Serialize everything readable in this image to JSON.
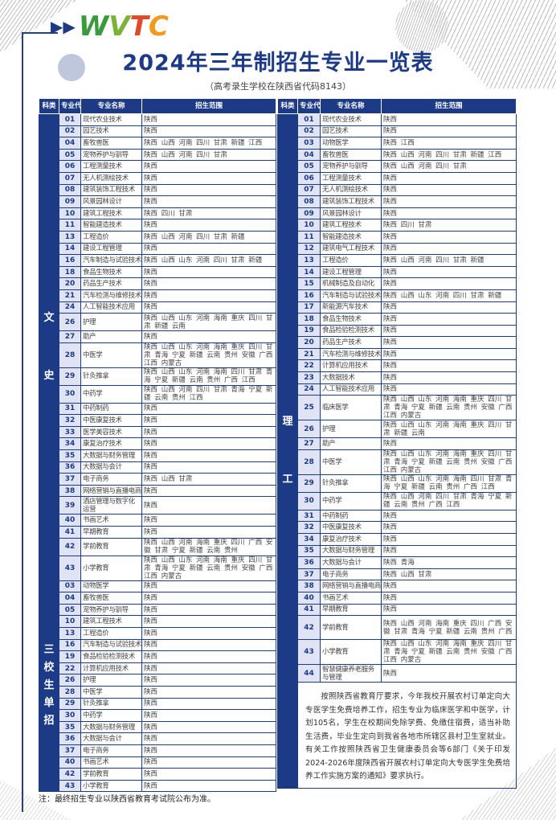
{
  "logo_text": "WVTC",
  "title": "2024年三年制招生专业一览表",
  "subtitle": "（高考录生学校在陕西省代码8143）",
  "colors": {
    "primary": "#1c3a85",
    "code_bg": "#dfe3f3"
  },
  "headers": {
    "category": "科类",
    "code": "专业代号",
    "name": "专业名称",
    "scope": "招生范围"
  },
  "left": {
    "sections": [
      {
        "category": "文史",
        "rows": [
          {
            "code": "01",
            "name": "现代农业技术",
            "scope": "陕西"
          },
          {
            "code": "02",
            "name": "园艺技术",
            "scope": "陕西"
          },
          {
            "code": "04",
            "name": "畜牧兽医",
            "scope": "陕西 山西 河南 四川 甘肃 新疆 江西"
          },
          {
            "code": "05",
            "name": "宠物养护与驯导",
            "scope": "陕西 山西 河南 四川 甘肃"
          },
          {
            "code": "06",
            "name": "工程测量技术",
            "scope": "陕西"
          },
          {
            "code": "07",
            "name": "无人机测绘技术",
            "scope": "陕西"
          },
          {
            "code": "08",
            "name": "建筑装饰工程技术",
            "scope": "陕西"
          },
          {
            "code": "09",
            "name": "风景园林设计",
            "scope": "陕西"
          },
          {
            "code": "10",
            "name": "建筑工程技术",
            "scope": "陕西 四川 甘肃"
          },
          {
            "code": "11",
            "name": "智能建造技术",
            "scope": "陕西"
          },
          {
            "code": "13",
            "name": "工程造价",
            "scope": "陕西 山西 河南 四川 甘肃 新疆"
          },
          {
            "code": "14",
            "name": "建设工程管理",
            "scope": "陕西"
          },
          {
            "code": "16",
            "name": "汽车制造与试验技术",
            "scope": "陕西 山西 山东 河南 四川 甘肃 新疆"
          },
          {
            "code": "18",
            "name": "食品生物技术",
            "scope": "陕西"
          },
          {
            "code": "20",
            "name": "药品生产技术",
            "scope": "陕西"
          },
          {
            "code": "21",
            "name": "汽车检测与维修技术",
            "scope": "陕西"
          },
          {
            "code": "24",
            "name": "人工智能技术应用",
            "scope": "陕西"
          },
          {
            "code": "26",
            "name": "护理",
            "scope": "陕西 山西 山东 河南 海南 重庆 四川 甘肃 新疆 云南"
          },
          {
            "code": "27",
            "name": "助产",
            "scope": "陕西"
          },
          {
            "code": "28",
            "name": "中医学",
            "scope": "陕西 山西 山东 河南 海南 重庆 四川 甘肃 青海 宁夏 新疆 云南 贵州 安徽 广西 江西 内蒙古"
          },
          {
            "code": "29",
            "name": "针灸推拿",
            "scope": "陕西 山西 山东 河南 海南 四川 甘肃 青海 宁夏 新疆 云南 贵州 广西 江西"
          },
          {
            "code": "30",
            "name": "中药学",
            "scope": "陕西 山西 河南 四川 甘肃 青海 宁夏 新疆 云南 贵州 江西"
          },
          {
            "code": "31",
            "name": "中药制药",
            "scope": "陕西"
          },
          {
            "code": "32",
            "name": "中医康复技术",
            "scope": "陕西"
          },
          {
            "code": "33",
            "name": "医学美容技术",
            "scope": "陕西"
          },
          {
            "code": "34",
            "name": "康复治疗技术",
            "scope": "陕西"
          },
          {
            "code": "35",
            "name": "大数据与财务管理",
            "scope": "陕西"
          },
          {
            "code": "36",
            "name": "大数据与会计",
            "scope": "陕西"
          },
          {
            "code": "37",
            "name": "电子商务",
            "scope": "陕西 山西 甘肃"
          },
          {
            "code": "38",
            "name": "网络营销与直播电商",
            "scope": "陕西"
          },
          {
            "code": "39",
            "name": "酒店管理与数字化运营",
            "scope": "陕西"
          },
          {
            "code": "40",
            "name": "书画艺术",
            "scope": "陕西"
          },
          {
            "code": "41",
            "name": "早期教育",
            "scope": "陕西"
          },
          {
            "code": "42",
            "name": "学前教育",
            "scope": "陕西 山西 河南 海南 重庆 四川 广西 安徽 甘肃 宁夏 新疆 云南 贵州"
          },
          {
            "code": "43",
            "name": "小学教育",
            "scope": "陕西 山西 山东 河南 海南 重庆 四川 甘肃 青海 宁夏 新疆 云南 贵州 安徽 广西 江西 内蒙古"
          }
        ]
      },
      {
        "category": "三校生单招",
        "rows": [
          {
            "code": "03",
            "name": "动物医学",
            "scope": "陕西"
          },
          {
            "code": "04",
            "name": "畜牧兽医",
            "scope": "陕西"
          },
          {
            "code": "05",
            "name": "宠物养护与驯导",
            "scope": "陕西"
          },
          {
            "code": "10",
            "name": "建筑工程技术",
            "scope": "陕西"
          },
          {
            "code": "13",
            "name": "工程造价",
            "scope": "陕西"
          },
          {
            "code": "16",
            "name": "汽车制造与试验技术",
            "scope": "陕西"
          },
          {
            "code": "19",
            "name": "食品检验检测技术",
            "scope": "陕西"
          },
          {
            "code": "22",
            "name": "计算机应用技术",
            "scope": "陕西"
          },
          {
            "code": "26",
            "name": "护理",
            "scope": "陕西"
          },
          {
            "code": "28",
            "name": "中医学",
            "scope": "陕西"
          },
          {
            "code": "29",
            "name": "针灸推拿",
            "scope": "陕西"
          },
          {
            "code": "30",
            "name": "中药学",
            "scope": "陕西"
          },
          {
            "code": "35",
            "name": "大数据与财务管理",
            "scope": "陕西"
          },
          {
            "code": "36",
            "name": "大数据与会计",
            "scope": "陕西"
          },
          {
            "code": "37",
            "name": "电子商务",
            "scope": "陕西"
          },
          {
            "code": "40",
            "name": "书画艺术",
            "scope": "陕西"
          },
          {
            "code": "42",
            "name": "学前教育",
            "scope": "陕西"
          },
          {
            "code": "43",
            "name": "小学教育",
            "scope": "陕西"
          }
        ]
      }
    ]
  },
  "right": {
    "sections": [
      {
        "category": "理工",
        "rows": [
          {
            "code": "01",
            "name": "现代农业技术",
            "scope": "陕西"
          },
          {
            "code": "02",
            "name": "园艺技术",
            "scope": "陕西"
          },
          {
            "code": "03",
            "name": "动物医学",
            "scope": "陕西 江西"
          },
          {
            "code": "04",
            "name": "畜牧兽医",
            "scope": "陕西 山西 河南 四川 甘肃 新疆 江西"
          },
          {
            "code": "05",
            "name": "宠物养护与驯导",
            "scope": "陕西 山西 河南 四川 甘肃"
          },
          {
            "code": "06",
            "name": "工程测量技术",
            "scope": "陕西"
          },
          {
            "code": "07",
            "name": "无人机测绘技术",
            "scope": "陕西"
          },
          {
            "code": "08",
            "name": "建筑装饰工程技术",
            "scope": "陕西"
          },
          {
            "code": "09",
            "name": "风景园林设计",
            "scope": "陕西"
          },
          {
            "code": "10",
            "name": "建筑工程技术",
            "scope": "陕西 四川 甘肃"
          },
          {
            "code": "11",
            "name": "智能建造技术",
            "scope": "陕西"
          },
          {
            "code": "12",
            "name": "建筑电气工程技术",
            "scope": "陕西"
          },
          {
            "code": "13",
            "name": "工程造价",
            "scope": "陕西 山西 河南 四川 甘肃 新疆"
          },
          {
            "code": "14",
            "name": "建设工程管理",
            "scope": "陕西"
          },
          {
            "code": "15",
            "name": "机械制造及自动化",
            "scope": "陕西"
          },
          {
            "code": "16",
            "name": "汽车制造与试验技术",
            "scope": "陕西 山西 山东 河南 四川 甘肃 新疆"
          },
          {
            "code": "17",
            "name": "新能源汽车技术",
            "scope": "陕西"
          },
          {
            "code": "18",
            "name": "食品生物技术",
            "scope": "陕西"
          },
          {
            "code": "19",
            "name": "食品检验检测技术",
            "scope": "陕西"
          },
          {
            "code": "20",
            "name": "药品生产技术",
            "scope": "陕西"
          },
          {
            "code": "21",
            "name": "汽车检测与维修技术",
            "scope": "陕西"
          },
          {
            "code": "22",
            "name": "计算机应用技术",
            "scope": "陕西"
          },
          {
            "code": "23",
            "name": "大数据技术",
            "scope": "陕西"
          },
          {
            "code": "24",
            "name": "人工智能技术应用",
            "scope": "陕西"
          },
          {
            "code": "25",
            "name": "临床医学",
            "scope": "陕西 山西 山东 河南 海南 重庆 四川 甘肃 青海 宁夏 新疆 云南 贵州 安徽 广西 江西 内蒙古"
          },
          {
            "code": "26",
            "name": "护理",
            "scope": "陕西 山西 山东 河南 海南 重庆 四川 甘肃 新疆 云南"
          },
          {
            "code": "27",
            "name": "助产",
            "scope": "陕西"
          },
          {
            "code": "28",
            "name": "中医学",
            "scope": "陕西 山西 山东 河南 海南 重庆 四川 甘肃 青海 宁夏 新疆 云南 贵州 安徽 广西 江西 内蒙古"
          },
          {
            "code": "29",
            "name": "针灸推拿",
            "scope": "陕西 山西 山东 河南 海南 四川 甘肃 青海 宁夏 新疆 云南 贵州 广西 江西"
          },
          {
            "code": "30",
            "name": "中药学",
            "scope": "陕西 山西 河南 四川 甘肃 青海 宁夏 新疆 云南 贵州 广西 江西"
          },
          {
            "code": "31",
            "name": "中药制药",
            "scope": "陕西"
          },
          {
            "code": "32",
            "name": "中医康复技术",
            "scope": "陕西"
          },
          {
            "code": "34",
            "name": "康复治疗技术",
            "scope": "陕西"
          },
          {
            "code": "35",
            "name": "大数据与财务管理",
            "scope": "陕西"
          },
          {
            "code": "36",
            "name": "大数据与会计",
            "scope": "陕西 青海"
          },
          {
            "code": "37",
            "name": "电子商务",
            "scope": "陕西 山西 甘肃"
          },
          {
            "code": "38",
            "name": "网络营销与直播电商",
            "scope": "陕西"
          },
          {
            "code": "40",
            "name": "书画艺术",
            "scope": "陕西"
          },
          {
            "code": "41",
            "name": "早期教育",
            "scope": "陕西"
          },
          {
            "code": "42",
            "name": "学前教育",
            "scope": "陕西 山西 河南 海南 重庆 四川 广西 安徽 甘肃 青海 宁夏 新疆 云南 贵州 广西"
          },
          {
            "code": "43",
            "name": "小学教育",
            "scope": "陕西 山西 山东 河南 海南 重庆 四川 甘肃 青海 宁夏 新疆 云南 贵州 安徽 广西 江西 内蒙古"
          },
          {
            "code": "44",
            "name": "智慧健康养老服务与管理",
            "scope": "陕西"
          }
        ]
      }
    ],
    "notice": "按照陕西省教育厅要求，今年我校开展农村订单定向大专医学生免费培养工作，招生专业为临床医学和中医学，计划105名，学生在校期间免除学费、免缴住宿费，适当补助生活费，毕业生定向到我省各地市所辖区县村卫生室就业。有关工作按照陕西省卫生健康委员会等6部门《关于印发2024-2026年度陕西省开展农村订单定向大专医学生免费培养工作实施方案的通知》要求执行。"
  },
  "footnote": "注：最终招生专业以陕西省教育考试院公布为准。"
}
